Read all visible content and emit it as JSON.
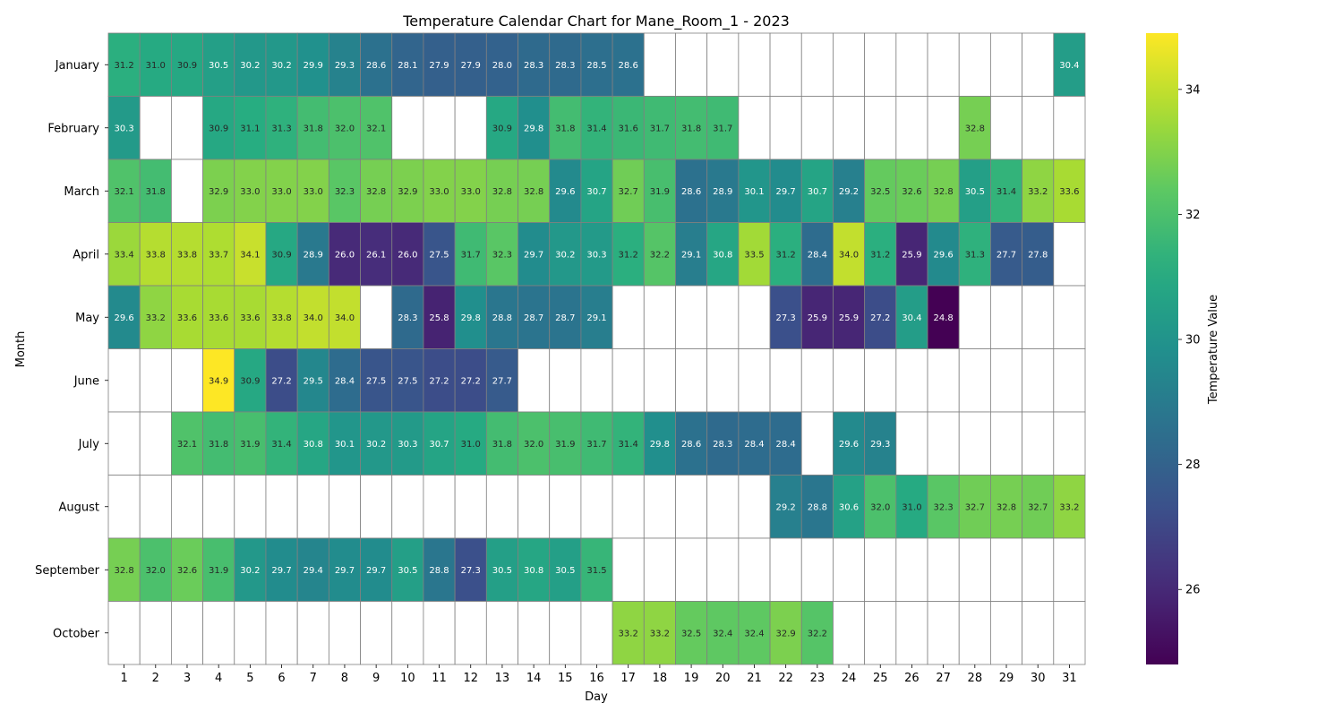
{
  "chart_data": {
    "type": "heatmap",
    "title": "Temperature Calendar Chart for Mane_Room_1 - 2023",
    "xlabel": "Day",
    "ylabel": "Month",
    "colorbar_label": "Temperature Value",
    "colormap": "viridis",
    "vmin": 24.8,
    "vmax": 34.9,
    "colorbar_ticks": [
      26,
      28,
      30,
      32,
      34
    ],
    "x_categories": [
      "1",
      "2",
      "3",
      "4",
      "5",
      "6",
      "7",
      "8",
      "9",
      "10",
      "11",
      "12",
      "13",
      "14",
      "15",
      "16",
      "17",
      "18",
      "19",
      "20",
      "21",
      "22",
      "23",
      "24",
      "25",
      "26",
      "27",
      "28",
      "29",
      "30",
      "31"
    ],
    "y_categories": [
      "January",
      "February",
      "March",
      "April",
      "May",
      "June",
      "July",
      "August",
      "September",
      "October"
    ],
    "values": [
      [
        31.2,
        31.0,
        30.9,
        30.5,
        30.2,
        30.2,
        29.9,
        29.3,
        28.6,
        28.1,
        27.9,
        27.9,
        28.0,
        28.3,
        28.3,
        28.5,
        28.6,
        null,
        null,
        null,
        null,
        null,
        null,
        null,
        null,
        null,
        null,
        null,
        null,
        null,
        30.4
      ],
      [
        30.3,
        null,
        null,
        30.9,
        31.1,
        31.3,
        31.8,
        32.0,
        32.1,
        null,
        null,
        null,
        30.9,
        29.8,
        31.8,
        31.4,
        31.6,
        31.7,
        31.8,
        31.7,
        null,
        null,
        null,
        null,
        null,
        null,
        null,
        32.8,
        null,
        null,
        null
      ],
      [
        32.1,
        31.8,
        null,
        32.9,
        33.0,
        33.0,
        33.0,
        32.3,
        32.8,
        32.9,
        33.0,
        33.0,
        32.8,
        32.8,
        29.6,
        30.7,
        32.7,
        31.9,
        28.6,
        28.9,
        30.1,
        29.7,
        30.7,
        29.2,
        32.5,
        32.6,
        32.8,
        30.5,
        31.4,
        33.2,
        33.6
      ],
      [
        33.4,
        33.8,
        33.8,
        33.7,
        34.1,
        30.9,
        28.9,
        26.0,
        26.1,
        26.0,
        27.5,
        31.7,
        32.3,
        29.7,
        30.2,
        30.3,
        31.2,
        32.2,
        29.1,
        30.8,
        33.5,
        31.2,
        28.4,
        34.0,
        31.2,
        25.9,
        29.6,
        31.3,
        27.7,
        27.8,
        null
      ],
      [
        29.6,
        33.2,
        33.6,
        33.6,
        33.6,
        33.8,
        34.0,
        34.0,
        null,
        28.3,
        25.8,
        29.8,
        28.8,
        28.7,
        28.7,
        29.1,
        null,
        null,
        null,
        null,
        null,
        27.3,
        25.9,
        25.9,
        27.2,
        30.4,
        24.8,
        null,
        null,
        null,
        null
      ],
      [
        null,
        null,
        null,
        34.9,
        30.9,
        27.2,
        29.5,
        28.4,
        27.5,
        27.5,
        27.2,
        27.2,
        27.7,
        null,
        null,
        null,
        null,
        null,
        null,
        null,
        null,
        null,
        null,
        null,
        null,
        null,
        null,
        null,
        null,
        null,
        null
      ],
      [
        null,
        null,
        32.1,
        31.8,
        31.9,
        31.4,
        30.8,
        30.1,
        30.2,
        30.3,
        30.7,
        31.0,
        31.8,
        32.0,
        31.9,
        31.7,
        31.4,
        29.8,
        28.6,
        28.3,
        28.4,
        28.4,
        null,
        29.6,
        29.3,
        null,
        null,
        null,
        null,
        null,
        null
      ],
      [
        null,
        null,
        null,
        null,
        null,
        null,
        null,
        null,
        null,
        null,
        null,
        null,
        null,
        null,
        null,
        null,
        null,
        null,
        null,
        null,
        null,
        29.2,
        28.8,
        30.6,
        32.0,
        31.0,
        32.3,
        32.7,
        32.8,
        32.7,
        33.2
      ],
      [
        32.8,
        32.0,
        32.6,
        31.9,
        30.2,
        29.7,
        29.4,
        29.7,
        29.7,
        30.5,
        28.8,
        27.3,
        30.5,
        30.8,
        30.5,
        31.5,
        null,
        null,
        null,
        null,
        null,
        null,
        null,
        null,
        null,
        null,
        null,
        null,
        null,
        null,
        null
      ],
      [
        null,
        null,
        null,
        null,
        null,
        null,
        null,
        null,
        null,
        null,
        null,
        null,
        null,
        null,
        null,
        null,
        33.2,
        33.2,
        32.5,
        32.4,
        32.4,
        32.9,
        32.2,
        null,
        null,
        null,
        null,
        null,
        null,
        null,
        null
      ]
    ]
  }
}
